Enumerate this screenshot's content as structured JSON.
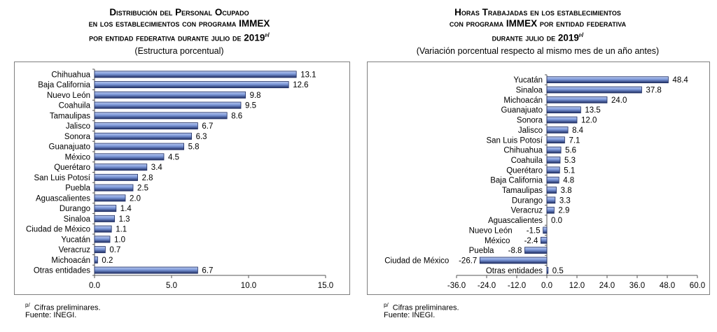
{
  "left": {
    "title_line1": "Distribución del Personal Ocupado",
    "title_line2": "en los establecimientos con programa IMMEX",
    "title_line3": "por entidad federativa durante julio de 2019",
    "title_sup": "p/",
    "subtitle": "(Estructura porcentual)",
    "footnote_mark": "p/",
    "footnote_text": "Cifras preliminares.",
    "source": "Fuente: INEGI."
  },
  "right": {
    "title_line1": "Horas Trabajadas en los establecimientos",
    "title_line2": "con programa IMMEX por entidad federativa",
    "title_line3": "durante julio de 2019",
    "title_sup": "p/",
    "subtitle": "(Variación porcentual respecto al mismo mes de un año antes)",
    "footnote_mark": "p/",
    "footnote_text": "Cifras preliminares.",
    "source": "Fuente: INEGI."
  },
  "colors": {
    "bar_fill": "#7b97d8",
    "bar_highlight": "#b9c9ef",
    "bar_stroke": "#1f2e63",
    "frame": "#7f7f7f"
  },
  "chart_data": [
    {
      "type": "bar",
      "orientation": "horizontal",
      "categories": [
        "Chihuahua",
        "Baja California",
        "Nuevo León",
        "Coahuila",
        "Tamaulipas",
        "Jalisco",
        "Sonora",
        "Guanajuato",
        "México",
        "Querétaro",
        "San Luis Potosí",
        "Puebla",
        "Aguascalientes",
        "Durango",
        "Sinaloa",
        "Ciudad de México",
        "Yucatán",
        "Veracruz",
        "Michoacán",
        "Otras entidades"
      ],
      "values": [
        13.1,
        12.6,
        9.8,
        9.5,
        8.6,
        6.7,
        6.3,
        5.8,
        4.5,
        3.4,
        2.8,
        2.5,
        2.0,
        1.4,
        1.3,
        1.1,
        1.0,
        0.7,
        0.2,
        6.7
      ],
      "value_labels": [
        "13.1",
        "12.6",
        "9.8",
        "9.5",
        "8.6",
        "6.7",
        "6.3",
        "5.8",
        "4.5",
        "3.4",
        "2.8",
        "2.5",
        "2.0",
        "1.4",
        "1.3",
        "1.1",
        "1.0",
        "0.7",
        "0.2",
        "6.7"
      ],
      "xlim": [
        0,
        15
      ],
      "xticks": [
        0,
        5,
        10,
        15
      ],
      "xtick_labels": [
        "0.0",
        "5.0",
        "10.0",
        "15.0"
      ],
      "grid": false,
      "legend": "none"
    },
    {
      "type": "bar",
      "orientation": "horizontal",
      "categories": [
        "Yucatán",
        "Sinaloa",
        "Michoacán",
        "Guanajuato",
        "Sonora",
        "Jalisco",
        "San Luis Potosí",
        "Chihuahua",
        "Coahuila",
        "Querétaro",
        "Baja California",
        "Tamaulipas",
        "Durango",
        "Veracruz",
        "Aguascalientes",
        "Nuevo León",
        "México",
        "Puebla",
        "Ciudad de México",
        "Otras entidades"
      ],
      "values": [
        48.4,
        37.8,
        24.0,
        13.5,
        12.0,
        8.4,
        7.1,
        5.6,
        5.3,
        5.1,
        4.8,
        3.8,
        3.3,
        2.9,
        0.0,
        -1.5,
        -2.4,
        -8.8,
        -26.7,
        0.5
      ],
      "value_labels": [
        "48.4",
        "37.8",
        "24.0",
        "13.5",
        "12.0",
        "8.4",
        "7.1",
        "5.6",
        "5.3",
        "5.1",
        "4.8",
        "3.8",
        "3.3",
        "2.9",
        "0.0",
        "-1.5",
        "-2.4",
        "-8.8",
        "-26.7",
        "0.5"
      ],
      "xlim": [
        -36,
        60
      ],
      "xticks": [
        -36,
        -24,
        -12,
        0,
        12,
        24,
        36,
        48,
        60
      ],
      "xtick_labels": [
        "-36.0",
        "-24.0",
        "-12.0",
        "0.0",
        "12.0",
        "24.0",
        "36.0",
        "48.0",
        "60.0"
      ],
      "grid": false,
      "legend": "none"
    }
  ]
}
